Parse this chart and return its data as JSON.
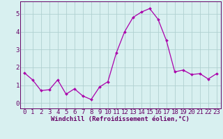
{
  "x": [
    0,
    1,
    2,
    3,
    4,
    5,
    6,
    7,
    8,
    9,
    10,
    11,
    12,
    13,
    14,
    15,
    16,
    17,
    18,
    19,
    20,
    21,
    22,
    23
  ],
  "y": [
    1.7,
    1.3,
    0.7,
    0.75,
    1.3,
    0.5,
    0.8,
    0.4,
    0.2,
    0.9,
    1.2,
    2.8,
    4.0,
    4.8,
    5.1,
    5.3,
    4.7,
    3.5,
    1.75,
    1.85,
    1.6,
    1.65,
    1.35,
    1.65
  ],
  "line_color": "#aa00aa",
  "marker_color": "#aa00aa",
  "bg_color": "#d8f0f0",
  "grid_color": "#b0d0d0",
  "xlabel": "Windchill (Refroidissement éolien,°C)",
  "xlim": [
    -0.5,
    23.5
  ],
  "ylim": [
    -0.3,
    5.7
  ],
  "xticks": [
    0,
    1,
    2,
    3,
    4,
    5,
    6,
    7,
    8,
    9,
    10,
    11,
    12,
    13,
    14,
    15,
    16,
    17,
    18,
    19,
    20,
    21,
    22,
    23
  ],
  "yticks": [
    0,
    1,
    2,
    3,
    4,
    5
  ],
  "axis_color": "#660066",
  "tick_color": "#660066",
  "xlabel_color": "#660066",
  "xlabel_fontsize": 6.5,
  "tick_fontsize": 6.5
}
